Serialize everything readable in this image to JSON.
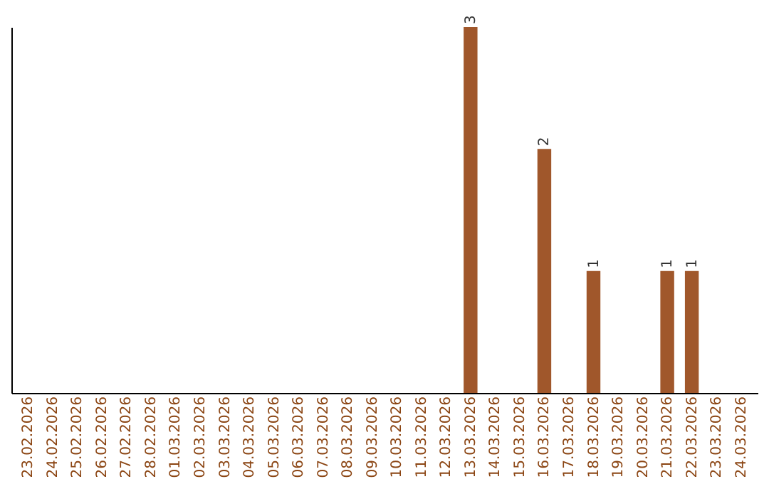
{
  "chart_data": {
    "type": "bar",
    "categories": [
      "23.02.2026",
      "24.02.2026",
      "25.02.2026",
      "26.02.2026",
      "27.02.2026",
      "28.02.2026",
      "01.03.2026",
      "02.03.2026",
      "03.03.2026",
      "04.03.2026",
      "05.03.2026",
      "06.03.2026",
      "07.03.2026",
      "08.03.2026",
      "09.03.2026",
      "10.03.2026",
      "11.03.2026",
      "12.03.2026",
      "13.03.2026",
      "14.03.2026",
      "15.03.2026",
      "16.03.2026",
      "17.03.2026",
      "18.03.2026",
      "19.03.2026",
      "20.03.2026",
      "21.03.2026",
      "22.03.2026",
      "23.03.2026",
      "24.03.2026"
    ],
    "values": [
      null,
      null,
      null,
      null,
      null,
      null,
      null,
      null,
      null,
      null,
      null,
      null,
      null,
      null,
      null,
      null,
      null,
      null,
      3,
      null,
      null,
      2,
      null,
      1,
      null,
      null,
      1,
      1,
      null,
      null
    ],
    "value_labels": [
      null,
      null,
      null,
      null,
      null,
      null,
      null,
      null,
      null,
      null,
      null,
      null,
      null,
      null,
      null,
      null,
      null,
      null,
      "3",
      null,
      null,
      "2",
      null,
      "1",
      null,
      null,
      "1",
      "1",
      null,
      null
    ],
    "color": "#a0572b",
    "ylim": [
      0,
      3
    ],
    "tick_labels": "x",
    "grid": false
  }
}
